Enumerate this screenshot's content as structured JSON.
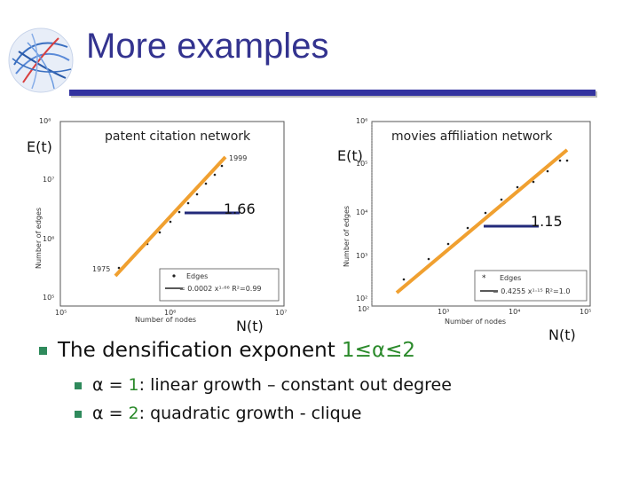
{
  "slide": {
    "title": "More examples",
    "colors": {
      "title": "#33338f",
      "bar": "#3333a0",
      "bullet": "#2f8a5c",
      "accent_green": "#2b8a2b",
      "fit_line": "#f0a030",
      "exponent_bar": "#222a7a"
    }
  },
  "left_plot": {
    "annotation_title": "patent citation network",
    "y_label_overlay": "E(t)",
    "x_label_overlay": "N(t)",
    "exponent": "1.66",
    "year_start": "1975",
    "year_end": "1999",
    "axis_xlabel": "Number of nodes",
    "axis_ylabel": "Number of edges",
    "y_ticks": [
      "10⁸",
      "10⁷",
      "10⁶",
      "10⁵"
    ],
    "x_ticks": [
      "10⁵",
      "10⁶",
      "10⁷"
    ],
    "legend_points": "Edges",
    "legend_fit": "= 0.0002 x¹·⁶⁶ R²=0.99"
  },
  "right_plot": {
    "annotation_title": "movies affiliation network",
    "y_label_overlay": "E(t)",
    "x_label_overlay": "N(t)",
    "exponent": "1.15",
    "axis_xlabel": "Number of nodes",
    "axis_ylabel": "Number of edges",
    "y_ticks": [
      "10⁶",
      "10⁵",
      "10⁴",
      "10³",
      "10²"
    ],
    "x_ticks": [
      "10²",
      "10³",
      "10⁴",
      "10⁵"
    ],
    "legend_points": "Edges",
    "legend_fit": "= 0.4255 x¹·¹⁵ R²=1.0"
  },
  "bullets": {
    "main_prefix": "The densification exponent ",
    "main_range": "1≤α≤2",
    "sub1_prefix": "α = ",
    "sub1_value": "1",
    "sub1_suffix": ": linear growth – constant out degree",
    "sub2_prefix": "α = ",
    "sub2_value": "2",
    "sub2_suffix": ": quadratic growth - clique"
  }
}
